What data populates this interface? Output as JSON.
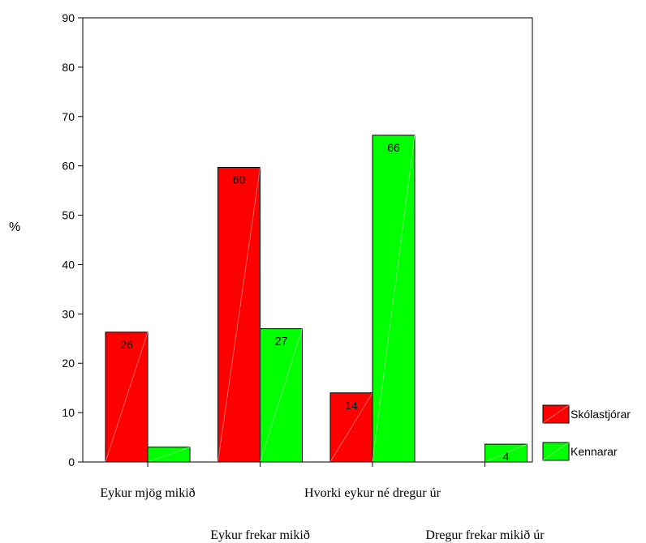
{
  "chart_data": {
    "type": "bar",
    "ylabel": "%",
    "ylim": [
      0,
      90
    ],
    "yticks": [
      0,
      10,
      20,
      30,
      40,
      50,
      60,
      70,
      80,
      90
    ],
    "categories": [
      "Eykur mjög  mikið",
      "Eykur frekar mikið",
      "Hvorki eykur né dregur úr",
      "Dregur frekar mikið úr"
    ],
    "series": [
      {
        "name": "Skólastjórar",
        "color": "#ff0000",
        "values": [
          26.3,
          59.7,
          14.0,
          0.0
        ],
        "labels": [
          "26",
          "60",
          "14",
          ""
        ]
      },
      {
        "name": "Kennarar",
        "color": "#00ff00",
        "values": [
          3.0,
          27.0,
          66.2,
          3.6
        ],
        "labels": [
          "",
          "27",
          "66",
          "4"
        ]
      }
    ],
    "legend_position": "right",
    "grid": false
  }
}
